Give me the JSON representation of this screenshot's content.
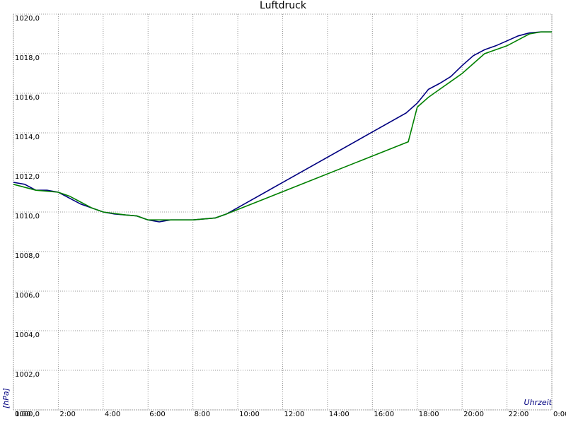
{
  "chart_data": {
    "type": "line",
    "title": "Luftdruck",
    "y_label": "[hPa]",
    "x_label": "Uhrzeit",
    "xlim": [
      0,
      24
    ],
    "xticks": [
      {
        "value": 0,
        "label": "0:00"
      },
      {
        "value": 2,
        "label": "2:00"
      },
      {
        "value": 4,
        "label": "4:00"
      },
      {
        "value": 6,
        "label": "6:00"
      },
      {
        "value": 8,
        "label": "8:00"
      },
      {
        "value": 10,
        "label": "10:00"
      },
      {
        "value": 12,
        "label": "12:00"
      },
      {
        "value": 14,
        "label": "14:00"
      },
      {
        "value": 16,
        "label": "16:00"
      },
      {
        "value": 18,
        "label": "18:00"
      },
      {
        "value": 20,
        "label": "20:00"
      },
      {
        "value": 22,
        "label": "22:00"
      },
      {
        "value": 24,
        "label": "0:00"
      }
    ],
    "ylim": [
      1000,
      1020
    ],
    "yticks": [
      {
        "value": 1000,
        "label": "1000,0"
      },
      {
        "value": 1002,
        "label": "1002,0"
      },
      {
        "value": 1004,
        "label": "1004,0"
      },
      {
        "value": 1006,
        "label": "1006,0"
      },
      {
        "value": 1008,
        "label": "1008,0"
      },
      {
        "value": 1010,
        "label": "1010,0"
      },
      {
        "value": 1012,
        "label": "1012,0"
      },
      {
        "value": 1014,
        "label": "1014,0"
      },
      {
        "value": 1016,
        "label": "1016,0"
      },
      {
        "value": 1018,
        "label": "1018,0"
      },
      {
        "value": 1020,
        "label": "1020,0"
      }
    ],
    "grid": true,
    "series": [
      {
        "color": "#000080",
        "x": [
          0,
          0.5,
          1,
          1.5,
          2,
          2.5,
          3,
          3.5,
          4,
          4.5,
          5,
          5.5,
          6,
          6.5,
          7,
          7.5,
          8,
          8.5,
          9,
          9.5,
          17.5,
          18,
          18.5,
          19,
          19.5,
          20,
          20.5,
          21,
          21.5,
          22,
          22.5,
          23,
          23.5,
          24
        ],
        "values": [
          1011.5,
          1011.4,
          1011.1,
          1011.1,
          1011.0,
          1010.7,
          1010.4,
          1010.2,
          1010.0,
          1009.9,
          1009.85,
          1009.8,
          1009.6,
          1009.5,
          1009.6,
          1009.6,
          1009.6,
          1009.65,
          1009.7,
          1009.9,
          1015.0,
          1015.5,
          1016.2,
          1016.5,
          1016.85,
          1017.4,
          1017.9,
          1018.2,
          1018.4,
          1018.65,
          1018.9,
          1019.05,
          1019.1,
          1019.1
        ]
      },
      {
        "color": "#008000",
        "x": [
          0,
          1,
          2,
          2.5,
          3,
          3.5,
          4,
          5,
          5.5,
          6,
          7,
          8,
          9,
          9.5,
          17.6,
          18,
          18.5,
          19,
          19.5,
          20,
          20.5,
          21,
          21.5,
          22,
          22.5,
          23,
          23.5,
          24
        ],
        "values": [
          1011.4,
          1011.1,
          1011.0,
          1010.8,
          1010.5,
          1010.2,
          1010.0,
          1009.85,
          1009.8,
          1009.6,
          1009.6,
          1009.6,
          1009.7,
          1009.9,
          1013.55,
          1015.3,
          1015.8,
          1016.2,
          1016.6,
          1017.0,
          1017.5,
          1018.0,
          1018.2,
          1018.4,
          1018.7,
          1019.0,
          1019.1,
          1019.1
        ]
      }
    ]
  }
}
